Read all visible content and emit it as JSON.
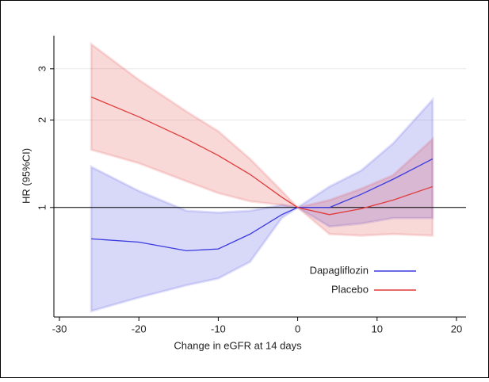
{
  "chart_data": {
    "type": "line_band",
    "xlabel": "Change in eGFR at 14 days",
    "ylabel": "HR (95%CI)",
    "x": [
      -26,
      -20,
      -14,
      -10,
      -6,
      -2,
      0,
      4,
      8,
      12,
      17
    ],
    "series": [
      {
        "name": "Dapagliflozin",
        "color": "#3a3ae0",
        "values": [
          0.78,
          0.76,
          0.71,
          0.72,
          0.81,
          0.945,
          1,
          1.0,
          1.11,
          1.25,
          1.47
        ],
        "upper": [
          1.38,
          1.14,
          0.975,
          0.96,
          0.975,
          1.02,
          1,
          1.18,
          1.34,
          1.66,
          2.35
        ],
        "lower": [
          0.44,
          0.49,
          0.54,
          0.57,
          0.65,
          0.92,
          1,
          0.86,
          0.88,
          0.92,
          0.92
        ]
      },
      {
        "name": "Placebo",
        "color": "#e03a3a",
        "values": [
          2.4,
          2.05,
          1.72,
          1.51,
          1.3,
          1.085,
          1,
          0.945,
          0.99,
          1.06,
          1.18
        ],
        "upper": [
          3.65,
          2.75,
          2.14,
          1.83,
          1.47,
          1.14,
          1,
          1.06,
          1.16,
          1.29,
          1.72
        ],
        "lower": [
          1.58,
          1.42,
          1.23,
          1.12,
          1.05,
          1.02,
          1,
          0.81,
          0.8,
          0.81,
          0.8
        ]
      }
    ],
    "xlim": [
      -30.7,
      21.2
    ],
    "xticks": [
      -30,
      -20,
      -10,
      0,
      10,
      20
    ],
    "ylim": [
      0.42,
      3.9
    ],
    "yticks": [
      1,
      2,
      3
    ],
    "ylog": true,
    "grid": true,
    "hline": 1,
    "legend": "lower right"
  }
}
